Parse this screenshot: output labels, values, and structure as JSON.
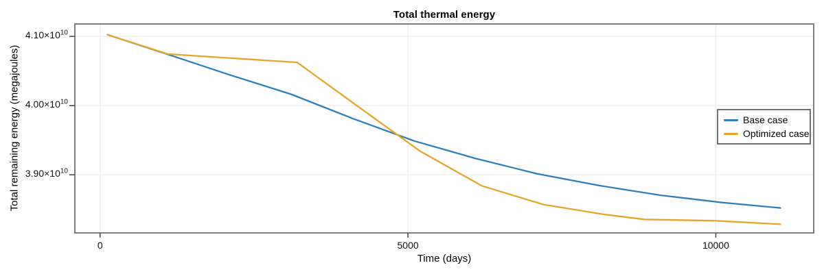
{
  "chart_data": {
    "type": "line",
    "title": "Total thermal energy",
    "xlabel": "Time (days)",
    "ylabel": "Total remaining energy (megajoules)",
    "xlim": [
      -410,
      11590
    ],
    "ylim": [
      38160000000.0,
      41180000000.0
    ],
    "grid": true,
    "legend_position": "center-right",
    "x_ticks": [
      {
        "value": 0,
        "label": "0"
      },
      {
        "value": 5000,
        "label": "5000"
      },
      {
        "value": 10000,
        "label": "10000"
      }
    ],
    "y_ticks": [
      {
        "value": 41000000000.0,
        "mantissa": "4.10×10",
        "exponent": "10"
      },
      {
        "value": 40000000000.0,
        "mantissa": "4.00×10",
        "exponent": "10"
      },
      {
        "value": 39000000000.0,
        "mantissa": "3.90×10",
        "exponent": "10"
      }
    ],
    "series": [
      {
        "name": "Base case",
        "color": "#2e7ebc",
        "points": [
          [
            120,
            41025000000.0
          ],
          [
            1100,
            40740000000.0
          ],
          [
            2100,
            40445000000.0
          ],
          [
            3100,
            40165000000.0
          ],
          [
            4100,
            39815000000.0
          ],
          [
            5100,
            39490000000.0
          ],
          [
            6100,
            39235000000.0
          ],
          [
            7100,
            39015000000.0
          ],
          [
            8100,
            38845000000.0
          ],
          [
            9100,
            38705000000.0
          ],
          [
            10100,
            38600000000.0
          ],
          [
            11050,
            38520000000.0
          ]
        ]
      },
      {
        "name": "Optimized case",
        "color": "#e5a42a",
        "points": [
          [
            120,
            41025000000.0
          ],
          [
            1100,
            40745000000.0
          ],
          [
            3200,
            40625000000.0
          ],
          [
            4200,
            39980000000.0
          ],
          [
            5200,
            39340000000.0
          ],
          [
            6200,
            38840000000.0
          ],
          [
            7200,
            38570000000.0
          ],
          [
            8200,
            38425000000.0
          ],
          [
            8840,
            38355000000.0
          ],
          [
            10000,
            38335000000.0
          ],
          [
            11050,
            38285000000.0
          ]
        ]
      }
    ],
    "style_colors": {
      "plot_border": "#7d7d7d",
      "gridline": "#efefef",
      "tick_mark": "#4d4d4d",
      "text": "#000000"
    }
  }
}
